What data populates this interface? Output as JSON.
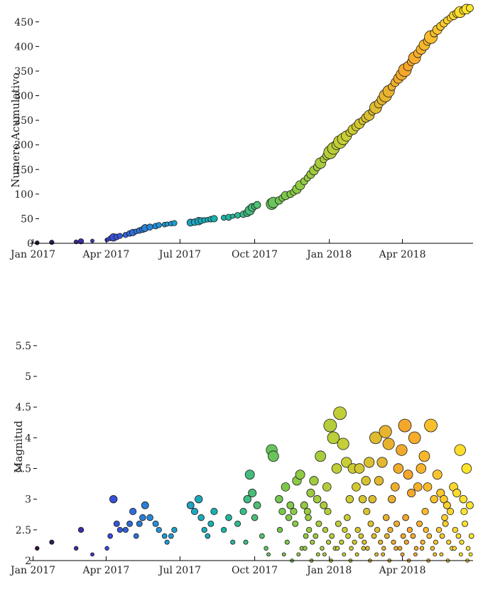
{
  "chart_data": [
    {
      "type": "scatter",
      "title": "",
      "xlabel": "",
      "ylabel": "Numero Acumulativo",
      "xlim": [
        "2016-12-28",
        "2018-06-27"
      ],
      "ylim": [
        0,
        480
      ],
      "x_ticks": [
        "Jan 2017",
        "Apr 2017",
        "Jul 2017",
        "Oct 2017",
        "Jan 2018",
        "Apr 2018"
      ],
      "y_ticks": [
        "0",
        "50",
        "100",
        "150",
        "200",
        "250",
        "300",
        "350",
        "400",
        "450"
      ],
      "colormap": [
        "#30123b",
        "#3e3bd8",
        "#2396d8",
        "#19b3a7",
        "#7bc84a",
        "#c9cf35",
        "#f6a52b",
        "#ffe82c"
      ],
      "grid": false,
      "legend": "none",
      "series": [
        {
          "x": [
            "2017-01-06",
            "2017-01-24",
            "2017-02-23",
            "2017-03-01",
            "2017-03-15",
            "2017-04-02",
            "2017-04-06",
            "2017-04-10",
            "2017-04-14",
            "2017-04-18",
            "2017-04-25",
            "2017-04-30",
            "2017-05-04",
            "2017-05-08",
            "2017-05-12",
            "2017-05-16",
            "2017-05-19",
            "2017-05-25",
            "2017-06-01",
            "2017-06-05",
            "2017-06-12",
            "2017-06-15",
            "2017-06-20",
            "2017-06-24",
            "2017-07-14",
            "2017-07-19",
            "2017-07-24",
            "2017-07-27",
            "2017-07-31",
            "2017-08-04",
            "2017-08-08",
            "2017-08-12",
            "2017-08-24",
            "2017-08-30",
            "2017-09-04",
            "2017-09-10",
            "2017-09-17",
            "2017-09-22",
            "2017-09-25",
            "2017-09-28",
            "2017-10-01",
            "2017-10-04",
            "2017-10-22",
            "2017-10-24",
            "2017-10-31",
            "2017-11-04",
            "2017-11-08",
            "2017-11-14",
            "2017-11-18",
            "2017-11-22",
            "2017-11-26",
            "2017-12-01",
            "2017-12-05",
            "2017-12-09",
            "2017-12-13",
            "2017-12-17",
            "2017-12-21",
            "2017-12-25",
            "2017-12-29",
            "2018-01-02",
            "2018-01-06",
            "2018-01-10",
            "2018-01-14",
            "2018-01-18",
            "2018-01-22",
            "2018-01-26",
            "2018-01-30",
            "2018-02-03",
            "2018-02-07",
            "2018-02-11",
            "2018-02-15",
            "2018-02-19",
            "2018-02-23",
            "2018-02-27",
            "2018-03-03",
            "2018-03-07",
            "2018-03-11",
            "2018-03-15",
            "2018-03-19",
            "2018-03-23",
            "2018-03-27",
            "2018-03-31",
            "2018-04-04",
            "2018-04-08",
            "2018-04-12",
            "2018-04-16",
            "2018-04-20",
            "2018-04-24",
            "2018-04-28",
            "2018-05-02",
            "2018-05-06",
            "2018-05-10",
            "2018-05-14",
            "2018-05-18",
            "2018-05-22",
            "2018-05-26",
            "2018-05-30",
            "2018-06-03",
            "2018-06-07",
            "2018-06-11",
            "2018-06-15",
            "2018-06-19",
            "2018-06-23"
          ],
          "y": [
            1,
            2,
            3,
            4,
            5,
            7,
            10,
            12,
            13,
            15,
            17,
            20,
            22,
            24,
            26,
            28,
            31,
            33,
            35,
            37,
            38,
            39,
            40,
            41,
            42,
            43,
            45,
            46,
            47,
            48,
            49,
            50,
            52,
            53,
            55,
            57,
            59,
            62,
            67,
            73,
            75,
            78,
            80,
            83,
            87,
            92,
            97,
            100,
            104,
            110,
            118,
            126,
            133,
            140,
            148,
            155,
            163,
            171,
            178,
            185,
            193,
            200,
            206,
            212,
            218,
            225,
            231,
            237,
            243,
            249,
            255,
            260,
            268,
            276,
            284,
            292,
            300,
            309,
            318,
            327,
            335,
            343,
            352,
            360,
            369,
            377,
            386,
            394,
            403,
            411,
            419,
            427,
            434,
            441,
            447,
            453,
            458,
            463,
            467,
            470,
            473,
            476,
            478
          ],
          "magnitude": [
            2.2,
            2.3,
            2.2,
            2.5,
            2.1,
            2.2,
            2.4,
            3.0,
            2.6,
            2.5,
            2.5,
            2.6,
            2.8,
            2.4,
            2.6,
            2.7,
            2.9,
            2.7,
            2.6,
            2.5,
            2.4,
            2.3,
            2.4,
            2.5,
            2.9,
            2.8,
            3.0,
            2.7,
            2.5,
            2.4,
            2.6,
            2.8,
            2.5,
            2.7,
            2.3,
            2.6,
            2.8,
            3.0,
            3.4,
            3.1,
            2.7,
            2.9,
            3.8,
            3.7,
            3.0,
            2.8,
            3.2,
            2.9,
            2.8,
            3.3,
            3.4,
            2.9,
            2.8,
            3.1,
            3.3,
            3.0,
            3.7,
            2.9,
            3.2,
            4.2,
            4.0,
            3.5,
            4.4,
            3.9,
            3.6,
            3.0,
            3.5,
            3.2,
            3.5,
            3.0,
            3.3,
            3.6,
            3.0,
            4.0,
            3.3,
            3.6,
            4.1,
            3.9,
            3.0,
            3.2,
            3.5,
            3.8,
            4.2,
            3.4,
            3.1,
            4.0,
            3.2,
            3.5,
            3.7,
            3.2,
            4.2,
            3.0,
            3.4,
            3.1,
            3.0,
            2.9,
            2.8,
            3.2,
            3.1,
            3.8,
            3.0,
            3.5,
            2.9
          ]
        }
      ]
    },
    {
      "type": "scatter",
      "title": "",
      "xlabel": "",
      "ylabel": "Magnitud",
      "xlim": [
        "2016-12-28",
        "2018-06-27"
      ],
      "ylim": [
        2,
        5.8
      ],
      "x_ticks": [
        "Jan 2017",
        "Apr 2017",
        "Jul 2017",
        "Oct 2017",
        "Jan 2018",
        "Apr 2018"
      ],
      "y_ticks": [
        "2",
        "2.5",
        "3",
        "3.5",
        "4",
        "4.5",
        "5",
        "5.5"
      ],
      "colormap": [
        "#30123b",
        "#3e3bd8",
        "#2396d8",
        "#19b3a7",
        "#7bc84a",
        "#c9cf35",
        "#f6a52b",
        "#ffe82c"
      ],
      "grid": false,
      "legend": "none",
      "series": [
        {
          "x": [
            "2017-01-06",
            "2017-01-24",
            "2017-02-23",
            "2017-03-01",
            "2017-03-15",
            "2017-04-02",
            "2017-04-06",
            "2017-04-10",
            "2017-04-14",
            "2017-04-18",
            "2017-04-25",
            "2017-04-30",
            "2017-05-04",
            "2017-05-08",
            "2017-05-12",
            "2017-05-16",
            "2017-05-19",
            "2017-05-25",
            "2017-06-01",
            "2017-06-05",
            "2017-06-12",
            "2017-06-15",
            "2017-06-20",
            "2017-06-24",
            "2017-07-14",
            "2017-07-19",
            "2017-07-24",
            "2017-07-27",
            "2017-07-31",
            "2017-08-04",
            "2017-08-08",
            "2017-08-12",
            "2017-08-24",
            "2017-08-30",
            "2017-09-04",
            "2017-09-10",
            "2017-09-17",
            "2017-09-22",
            "2017-09-25",
            "2017-09-28",
            "2017-10-01",
            "2017-10-04",
            "2017-10-22",
            "2017-10-24",
            "2017-10-31",
            "2017-11-04",
            "2017-11-08",
            "2017-11-14",
            "2017-11-18",
            "2017-11-22",
            "2017-11-26",
            "2017-12-01",
            "2017-12-05",
            "2017-12-09",
            "2017-12-13",
            "2017-12-17",
            "2017-12-21",
            "2017-12-25",
            "2017-12-29",
            "2018-01-02",
            "2018-01-06",
            "2018-01-10",
            "2018-01-14",
            "2018-01-18",
            "2018-01-22",
            "2018-01-26",
            "2018-01-30",
            "2018-02-03",
            "2018-02-07",
            "2018-02-11",
            "2018-02-15",
            "2018-02-19",
            "2018-02-23",
            "2018-02-27",
            "2018-03-03",
            "2018-03-07",
            "2018-03-11",
            "2018-03-15",
            "2018-03-19",
            "2018-03-23",
            "2018-03-27",
            "2018-03-31",
            "2018-04-04",
            "2018-04-08",
            "2018-04-12",
            "2018-04-16",
            "2018-04-20",
            "2018-04-24",
            "2018-04-28",
            "2018-05-02",
            "2018-05-06",
            "2018-05-10",
            "2018-05-14",
            "2018-05-18",
            "2018-05-22",
            "2018-05-26",
            "2018-05-30",
            "2018-06-03",
            "2018-06-07",
            "2018-06-11",
            "2018-06-15",
            "2018-06-19",
            "2018-06-23",
            "2017-09-20",
            "2017-10-10",
            "2017-10-15",
            "2017-11-01",
            "2017-11-10",
            "2017-11-20",
            "2017-11-28",
            "2017-12-03",
            "2017-12-07",
            "2017-12-11",
            "2017-12-15",
            "2017-12-19",
            "2017-12-23",
            "2017-12-27",
            "2017-12-31",
            "2018-01-04",
            "2018-01-08",
            "2018-01-12",
            "2018-01-16",
            "2018-01-20",
            "2018-01-24",
            "2018-01-28",
            "2018-02-01",
            "2018-02-05",
            "2018-02-09",
            "2018-02-13",
            "2018-02-17",
            "2018-02-21",
            "2018-02-25",
            "2018-03-01",
            "2018-03-05",
            "2018-03-09",
            "2018-03-13",
            "2018-03-17",
            "2018-03-21",
            "2018-03-25",
            "2018-03-29",
            "2018-04-02",
            "2018-04-06",
            "2018-04-10",
            "2018-04-14",
            "2018-04-18",
            "2018-04-22",
            "2018-04-26",
            "2018-04-30",
            "2018-05-04",
            "2018-05-08",
            "2018-05-12",
            "2018-05-16",
            "2018-05-20",
            "2018-05-24",
            "2018-05-28",
            "2018-06-01",
            "2018-06-05",
            "2018-06-09",
            "2018-06-13",
            "2018-06-17",
            "2018-06-21",
            "2018-06-25",
            "2017-10-18",
            "2017-11-06",
            "2017-11-16",
            "2017-11-24",
            "2017-12-02",
            "2017-12-10",
            "2017-12-18",
            "2017-12-26",
            "2018-01-03",
            "2018-01-11",
            "2018-01-19",
            "2018-01-27",
            "2018-02-04",
            "2018-02-12",
            "2018-02-20",
            "2018-02-28",
            "2018-03-08",
            "2018-03-16",
            "2018-03-24",
            "2018-04-01",
            "2018-04-09",
            "2018-04-17",
            "2018-04-25",
            "2018-05-03",
            "2018-05-11",
            "2018-05-19",
            "2018-05-27",
            "2018-06-04",
            "2018-06-12",
            "2018-06-20",
            "2018-06-24",
            "2017-11-12",
            "2017-12-06",
            "2017-12-30",
            "2018-01-23",
            "2018-02-16",
            "2018-03-12",
            "2018-04-05",
            "2018-04-29",
            "2018-05-23",
            "2018-06-16"
          ],
          "y": [
            2.2,
            2.3,
            2.2,
            2.5,
            2.1,
            2.2,
            2.4,
            3.0,
            2.6,
            2.5,
            2.5,
            2.6,
            2.8,
            2.4,
            2.6,
            2.7,
            2.9,
            2.7,
            2.6,
            2.5,
            2.4,
            2.3,
            2.4,
            2.5,
            2.9,
            2.8,
            3.0,
            2.7,
            2.5,
            2.4,
            2.6,
            2.8,
            2.5,
            2.7,
            2.3,
            2.6,
            2.8,
            3.0,
            3.4,
            3.1,
            2.7,
            2.9,
            3.8,
            3.7,
            3.0,
            2.8,
            3.2,
            2.9,
            2.8,
            3.3,
            3.4,
            2.9,
            2.8,
            3.1,
            3.3,
            3.0,
            3.7,
            2.9,
            3.2,
            4.2,
            4.0,
            3.5,
            4.4,
            3.9,
            3.6,
            3.0,
            3.5,
            3.2,
            3.5,
            3.0,
            3.3,
            3.6,
            3.0,
            4.0,
            3.3,
            3.6,
            4.1,
            3.9,
            3.0,
            3.2,
            3.5,
            3.8,
            4.2,
            3.4,
            3.1,
            4.0,
            3.2,
            3.5,
            3.7,
            3.2,
            4.2,
            3.0,
            3.4,
            3.1,
            3.0,
            2.9,
            2.8,
            3.2,
            3.1,
            3.8,
            3.0,
            3.5,
            2.9,
            2.3,
            2.4,
            2.2,
            2.5,
            2.3,
            2.6,
            2.2,
            2.4,
            2.5,
            2.3,
            2.4,
            2.6,
            2.2,
            2.5,
            2.3,
            2.4,
            2.2,
            2.6,
            2.3,
            2.5,
            2.4,
            2.2,
            2.3,
            2.5,
            2.4,
            2.3,
            2.2,
            2.6,
            2.4,
            2.5,
            2.3,
            2.2,
            2.4,
            2.5,
            2.3,
            2.6,
            2.2,
            2.4,
            2.3,
            2.5,
            2.4,
            2.2,
            2.6,
            2.3,
            2.5,
            2.4,
            2.2,
            2.3,
            2.5,
            2.4,
            2.6,
            2.3,
            2.2,
            2.5,
            2.4,
            2.3,
            2.6,
            2.2,
            2.4,
            2.1,
            2.1,
            2.0,
            2.1,
            2.2,
            2.0,
            2.1,
            2.1,
            2.0,
            2.2,
            2.1,
            2.0,
            2.1,
            2.2,
            2.0,
            2.1,
            2.1,
            2.0,
            2.2,
            2.1,
            2.0,
            2.1,
            2.2,
            2.0,
            2.1,
            2.1,
            2.0,
            2.2,
            2.1,
            2.0,
            2.1,
            2.7,
            2.7,
            2.8,
            2.7,
            2.8,
            2.7,
            2.7,
            2.8,
            2.7,
            2.8
          ]
        }
      ]
    }
  ]
}
